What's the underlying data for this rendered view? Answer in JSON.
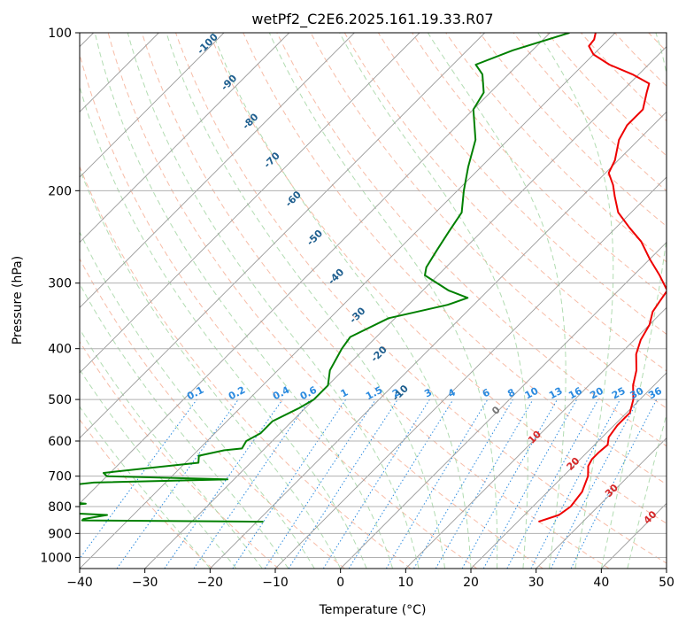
{
  "chart_data": {
    "type": "line",
    "subtype": "skew-t log-p",
    "title": "wetPf2_C2E6.2025.161.19.33.R07",
    "xlabel": "Temperature (°C)",
    "ylabel": "Pressure (hPa)",
    "xlim": [
      -40,
      50
    ],
    "ylim": [
      1050,
      100
    ],
    "y_scale": "log",
    "grid": true,
    "x_ticks": [
      -40,
      -30,
      -20,
      -10,
      0,
      10,
      20,
      30,
      40,
      50
    ],
    "y_ticks": [
      100,
      200,
      300,
      400,
      500,
      600,
      700,
      800,
      900,
      1000
    ],
    "colors": {
      "temperature": "#ee0000",
      "dewpoint": "#008000",
      "isotherm": "#999999",
      "dry_adiabat": "#f4a58a",
      "moist_adiabat": "#9fd39f",
      "mixing_ratio": "#2a8adf"
    },
    "series": [
      {
        "role": "temperature",
        "color": "#ee0000",
        "x": [
          23.2,
          25.3,
          25.8,
          25.3,
          23.8,
          22.3,
          21.8,
          21.8,
          22.0,
          21.0,
          20.5,
          20.5,
          19.0,
          16.8,
          15.0,
          12.5,
          11.0,
          10.0,
          8.5,
          8.0,
          7.5,
          4.0,
          0.0,
          -4.0,
          -8.0,
          -12.0,
          -15.0,
          -17.0,
          -19.5,
          -20.5,
          -23.0,
          -24.0,
          -24.0,
          -26.0,
          -27.0,
          -31.0,
          -36.0,
          -40.0,
          -42.0,
          -42.2,
          -43.0
        ],
        "y": [
          855,
          830,
          800,
          750,
          700,
          670,
          650,
          630,
          610,
          590,
          560,
          530,
          500,
          470,
          440,
          410,
          385,
          360,
          340,
          325,
          310,
          290,
          270,
          250,
          235,
          220,
          205,
          195,
          185,
          175,
          160,
          150,
          140,
          130,
          125,
          120,
          115,
          110,
          106,
          103,
          100
        ]
      },
      {
        "role": "dewpoint",
        "color": "#008000",
        "x": [
          -19.0,
          -47.0,
          -47.0,
          -44.0,
          -53.0,
          -56.0,
          -49.0,
          -57.0,
          -59.0,
          -51.0,
          -31.0,
          -50.0,
          -51.0,
          -38.0,
          -39.0,
          -36.0,
          -33.5,
          -34.0,
          -33.0,
          -33.0,
          -31.0,
          -30.0,
          -30.0,
          -32.0,
          -33.5,
          -34.0,
          -31.0,
          -24.0,
          -22.0,
          -26.0,
          -32.0,
          -33.0,
          -34.0,
          -35.0,
          -36.0,
          -39.0,
          -42.0,
          -45.0,
          -50.0,
          -51.0,
          -54.0,
          -56.5,
          -53.0,
          -47.0
        ],
        "y": [
          855,
          850,
          845,
          830,
          820,
          805,
          790,
          775,
          740,
          720,
          710,
          700,
          690,
          660,
          640,
          625,
          620,
          600,
          580,
          550,
          520,
          500,
          470,
          440,
          400,
          380,
          350,
          330,
          320,
          310,
          290,
          280,
          260,
          240,
          220,
          200,
          180,
          160,
          140,
          130,
          120,
          115,
          108,
          100
        ]
      }
    ],
    "dry_adiabat_labels": [
      "-100",
      "-90",
      "-80",
      "-70",
      "-60",
      "-50",
      "-40",
      "-30",
      "-20",
      "-10"
    ],
    "moist_adiabat_labels": [
      "0",
      "10",
      "20",
      "30",
      "40"
    ],
    "mixing_ratio_labels": [
      "0.1",
      "0.2",
      "0.4",
      "0.6",
      "1",
      "1.5",
      "2",
      "3",
      "4",
      "6",
      "8",
      "10",
      "13",
      "16",
      "20",
      "25",
      "30",
      "36"
    ],
    "mixing_ratio_values": [
      0.1,
      0.2,
      0.4,
      0.6,
      1,
      1.5,
      2,
      3,
      4,
      6,
      8,
      10,
      13,
      16,
      20,
      25,
      30,
      36
    ]
  }
}
